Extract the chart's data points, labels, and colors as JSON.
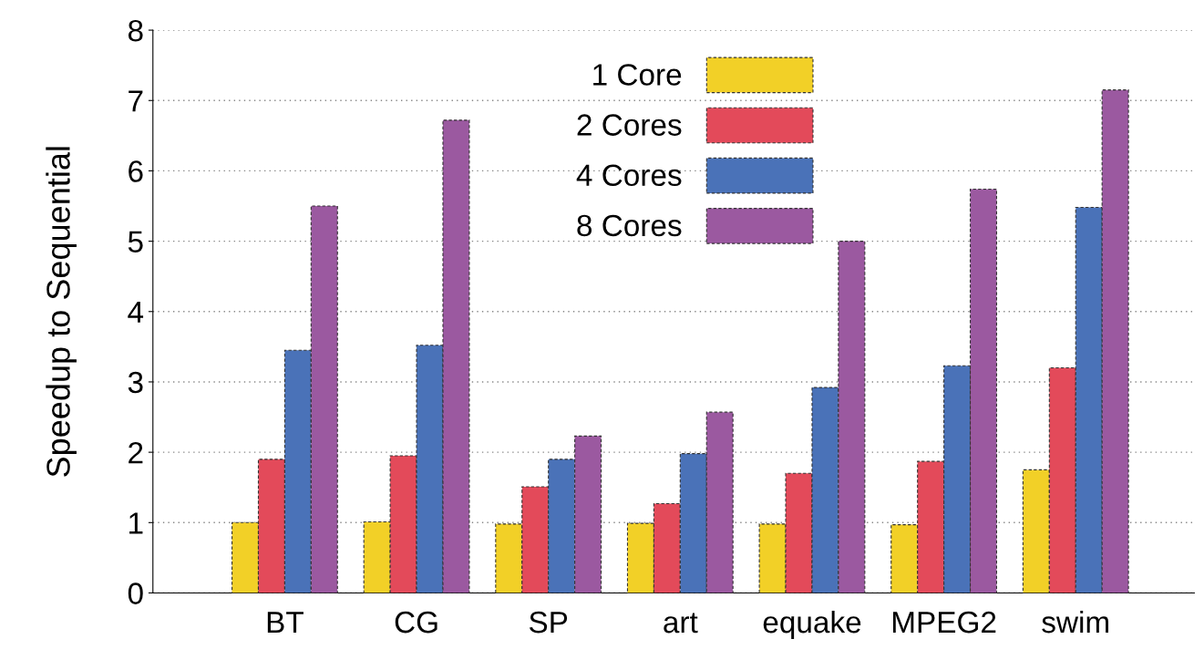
{
  "chart_data": {
    "type": "bar",
    "ylabel": "Speedup to Sequential",
    "categories": [
      "BT",
      "CG",
      "SP",
      "art",
      "equake",
      "MPEG2",
      "swim"
    ],
    "series": [
      {
        "name": "1 Core",
        "color": "#f2d027",
        "values": [
          1.0,
          1.01,
          0.98,
          0.99,
          0.98,
          0.97,
          1.75
        ]
      },
      {
        "name": "2 Cores",
        "color": "#e34a5a",
        "values": [
          1.9,
          1.95,
          1.51,
          1.27,
          1.7,
          1.87,
          3.2
        ]
      },
      {
        "name": "4 Cores",
        "color": "#4a72b8",
        "values": [
          3.45,
          3.52,
          1.9,
          1.98,
          2.92,
          3.23,
          5.48
        ]
      },
      {
        "name": "8 Cores",
        "color": "#9b59a0",
        "values": [
          5.5,
          6.72,
          2.23,
          2.57,
          5.0,
          5.74,
          7.15
        ]
      }
    ],
    "ylim": [
      0,
      8
    ],
    "yticks": [
      0,
      1,
      2,
      3,
      4,
      5,
      6,
      7,
      8
    ],
    "grid": "y",
    "legend": "top"
  }
}
